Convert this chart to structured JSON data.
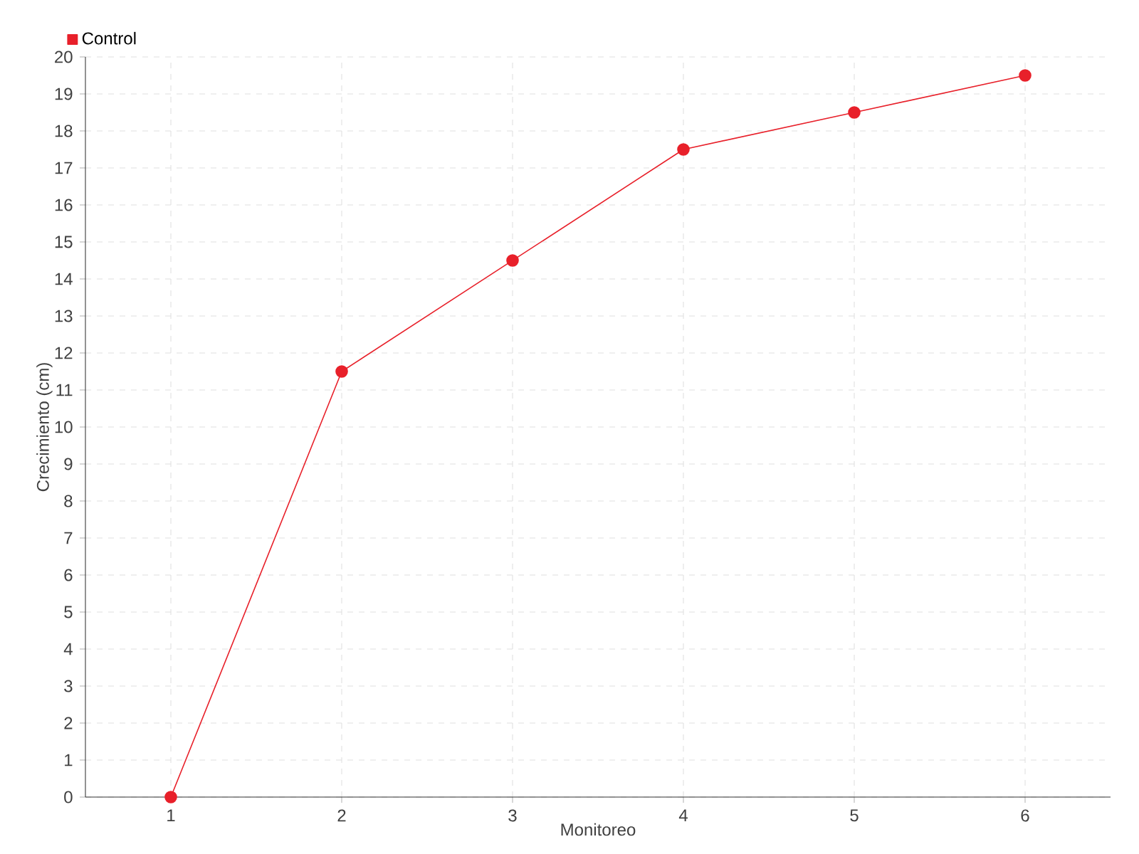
{
  "chart_data": {
    "type": "line",
    "xlabel": "Monitoreo",
    "ylabel": "Crecimiento (cm)",
    "x": [
      1,
      2,
      3,
      4,
      5,
      6
    ],
    "xlim": [
      0.5,
      6.5
    ],
    "xticks": [
      1,
      2,
      3,
      4,
      5,
      6
    ],
    "ylim": [
      0,
      20
    ],
    "yticks": [
      0,
      1,
      2,
      3,
      4,
      5,
      6,
      7,
      8,
      9,
      10,
      11,
      12,
      13,
      14,
      15,
      16,
      17,
      18,
      19,
      20
    ],
    "series": [
      {
        "name": "Control",
        "color": "#e8202a",
        "values": [
          0,
          11.5,
          14.5,
          17.5,
          18.5,
          19.5
        ]
      }
    ],
    "grid": true,
    "legend": "top left",
    "marker": "circle",
    "line_style": "solid"
  }
}
